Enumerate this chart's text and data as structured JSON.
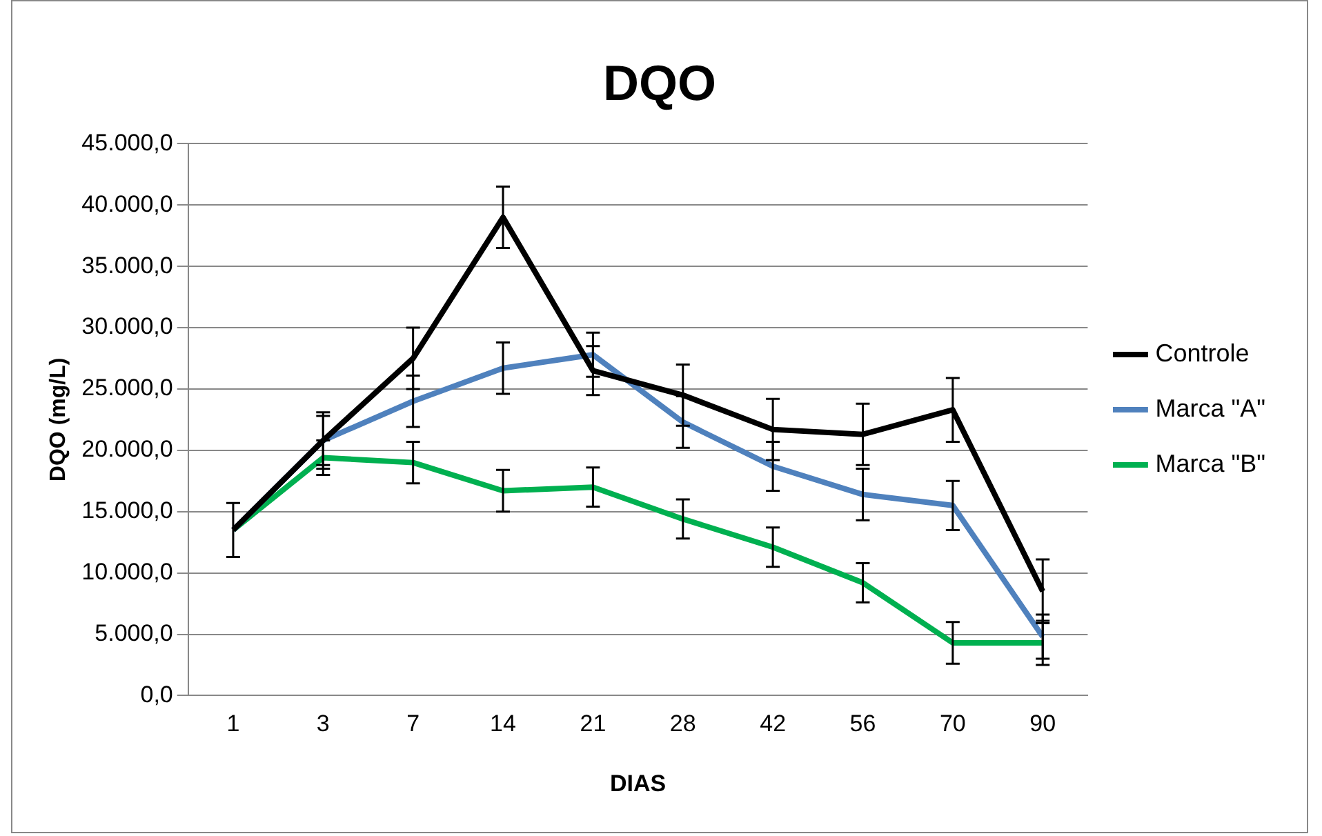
{
  "chart_data": {
    "type": "line",
    "title": "DQO",
    "xlabel": "DIAS",
    "ylabel": "DQO (mg/L)",
    "categories": [
      "1",
      "3",
      "7",
      "14",
      "21",
      "28",
      "42",
      "56",
      "70",
      "90"
    ],
    "ylim": [
      0,
      45000
    ],
    "yticks": [
      {
        "value": 0,
        "label": "0,0"
      },
      {
        "value": 5000,
        "label": "5.000,0"
      },
      {
        "value": 10000,
        "label": "10.000,0"
      },
      {
        "value": 15000,
        "label": "15.000,0"
      },
      {
        "value": 20000,
        "label": "20.000,0"
      },
      {
        "value": 25000,
        "label": "25.000,0"
      },
      {
        "value": 30000,
        "label": "30.000,0"
      },
      {
        "value": 35000,
        "label": "35.000,0"
      },
      {
        "value": 40000,
        "label": "40.000,0"
      },
      {
        "value": 45000,
        "label": "45.000,0"
      }
    ],
    "grid": "y",
    "legend": "right",
    "marker": "none",
    "line_style": "solid",
    "series": [
      {
        "name": "Controle",
        "color": "#000000",
        "values": [
          13500,
          20800,
          27500,
          39000,
          26500,
          24500,
          21700,
          21300,
          23300,
          8500
        ],
        "errors": [
          2200,
          2300,
          2500,
          2500,
          2000,
          2500,
          2500,
          2500,
          2600,
          2600
        ]
      },
      {
        "name": "Marca \"A\"",
        "color": "#4f81bd",
        "values": [
          13500,
          20800,
          24000,
          26700,
          27800,
          22300,
          18700,
          16400,
          15500,
          4800
        ],
        "errors": [
          null,
          2000,
          2100,
          2100,
          1800,
          2100,
          2000,
          2100,
          2000,
          1800
        ]
      },
      {
        "name": "Marca \"B\"",
        "color": "#00b050",
        "values": [
          13500,
          19400,
          19000,
          16700,
          17000,
          14400,
          12100,
          9200,
          4300,
          4300
        ],
        "errors": [
          null,
          1400,
          1700,
          1700,
          1600,
          1600,
          1600,
          1600,
          1700,
          1800
        ]
      }
    ]
  }
}
